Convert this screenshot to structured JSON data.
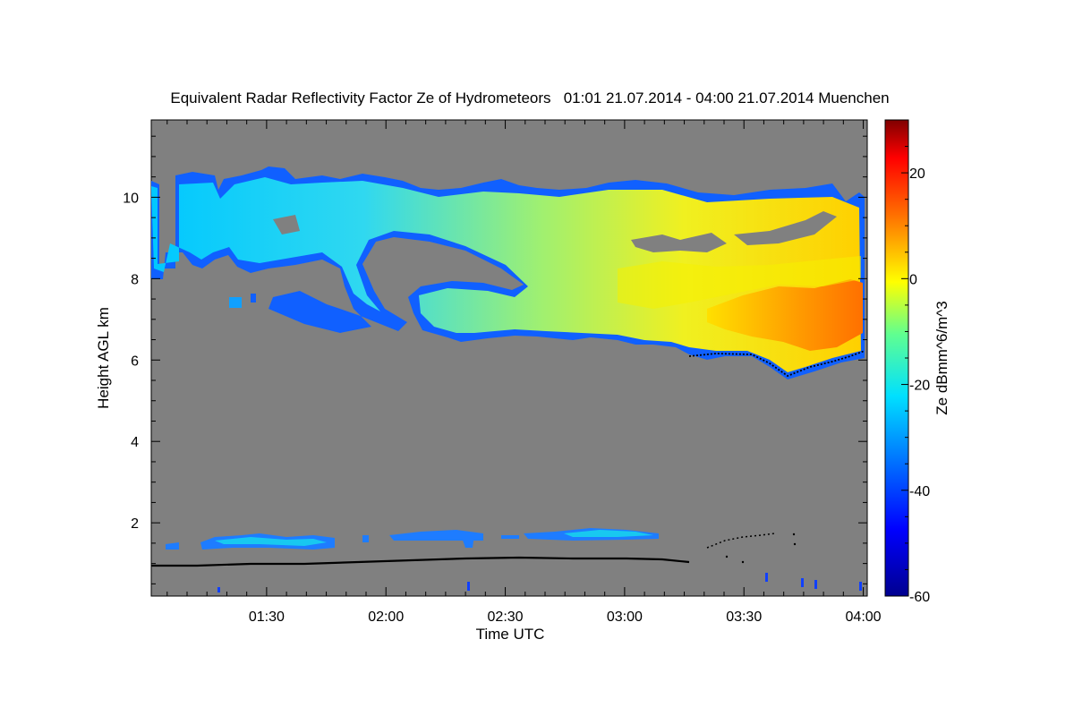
{
  "chart_data": {
    "type": "heatmap",
    "title": "Equivalent Radar Reflectivity Factor Ze of Hydrometeors   01:01 21.07.2014 - 04:00 21.07.2014 Muenchen",
    "xlabel": "Time UTC",
    "ylabel": "Height AGL km",
    "x_ticks": [
      "01:30",
      "02:00",
      "02:30",
      "03:00",
      "03:30",
      "04:00"
    ],
    "x_tick_minutes": [
      90,
      120,
      150,
      180,
      210,
      240
    ],
    "xlim_minutes": [
      61,
      241
    ],
    "ylim": [
      0.2,
      11.9
    ],
    "y_ticks": [
      2,
      4,
      6,
      8,
      10
    ],
    "colorbar": {
      "label": "Ze dBmm^6/m^3",
      "range": [
        -60,
        30
      ],
      "ticks": [
        -60,
        -40,
        -20,
        0,
        20
      ],
      "tick_labels": [
        "-60",
        "-40",
        "-20",
        "0",
        "20"
      ]
    },
    "background_color": "#808080",
    "features": [
      {
        "name": "upper cloud layer",
        "time_range": [
          "01:01",
          "04:00"
        ],
        "top_km": [
          10.5,
          10.7,
          10.1,
          10.0
        ],
        "base_km": [
          8.1,
          6.6,
          6.3,
          5.7
        ],
        "ze_range_dbz": [
          -45,
          15
        ]
      },
      {
        "name": "low cloud layer",
        "time_range": [
          "01:10",
          "03:10"
        ],
        "base_km": 1.4,
        "top_km": 1.9,
        "ze_range_dbz": [
          -45,
          -30
        ]
      },
      {
        "name": "cloud base detections",
        "time_range": [
          "01:01",
          "03:20"
        ],
        "height_km": [
          0.9,
          1.15
        ]
      }
    ]
  }
}
